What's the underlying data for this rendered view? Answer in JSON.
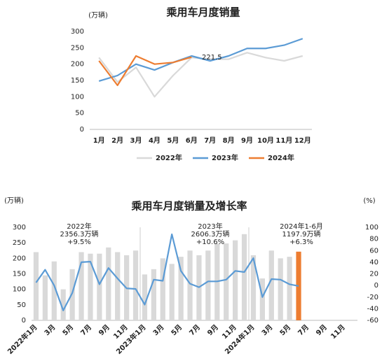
{
  "chart_data": [
    {
      "type": "line",
      "title": "乘用车月度销量",
      "y_unit_label": "(万辆)",
      "categories": [
        "1月",
        "2月",
        "3月",
        "4月",
        "5月",
        "6月",
        "7月",
        "8月",
        "9月",
        "10月",
        "11月",
        "12月"
      ],
      "series": [
        {
          "name": "2022年",
          "color": "#d9d9d9",
          "values": [
            220,
            145,
            190,
            100,
            165,
            220,
            215,
            215,
            235,
            220,
            210,
            225
          ]
        },
        {
          "name": "2023年",
          "color": "#5b9bd5",
          "values": [
            148,
            165,
            200,
            182,
            205,
            225,
            210,
            225,
            248,
            248,
            258,
            278
          ]
        },
        {
          "name": "2024年",
          "color": "#ed7d31",
          "values": [
            210,
            135,
            225,
            200,
            205,
            221.5,
            null,
            null,
            null,
            null,
            null,
            null
          ]
        }
      ],
      "annotations": [
        "221.5"
      ],
      "ylim": [
        0,
        300
      ],
      "yticks": [
        0,
        50,
        100,
        150,
        200,
        250,
        300
      ],
      "grid": false,
      "legend": "bottom"
    },
    {
      "type": "bar",
      "title": "乘用车月度销量及增长率",
      "y_unit_label": "(万辆)",
      "y2_unit_label": "(%)",
      "categories": [
        "2022年1月",
        null,
        "3月",
        null,
        "5月",
        null,
        "7月",
        null,
        "9月",
        null,
        "11月",
        null,
        "2023年1月",
        null,
        "3月",
        null,
        "5月",
        null,
        "7月",
        null,
        "9月",
        null,
        "11月",
        null,
        "2024年1月",
        null,
        "3月",
        null,
        "5月",
        null,
        "7月",
        null,
        "9月",
        null,
        "11月",
        null
      ],
      "series": [
        {
          "type": "bar",
          "color": "#d9d9d9",
          "values": [
            220,
            145,
            190,
            100,
            165,
            220,
            215,
            215,
            235,
            220,
            210,
            225,
            148,
            165,
            200,
            182,
            205,
            225,
            210,
            225,
            248,
            248,
            258,
            278,
            210,
            135,
            225,
            200,
            205,
            null,
            null,
            null,
            null,
            null,
            null,
            null
          ]
        },
        {
          "type": "bar",
          "color": "#ed7d31",
          "values": [
            null,
            null,
            null,
            null,
            null,
            null,
            null,
            null,
            null,
            null,
            null,
            null,
            null,
            null,
            null,
            null,
            null,
            null,
            null,
            null,
            null,
            null,
            null,
            null,
            null,
            null,
            null,
            null,
            null,
            221.5,
            null,
            null,
            null,
            null,
            null,
            null
          ]
        },
        {
          "type": "line",
          "axis": "y2",
          "color": "#5b9bd5",
          "values": [
            5,
            27,
            0,
            -43,
            -13,
            40,
            41,
            2,
            30,
            12,
            -5,
            -6,
            -33,
            10,
            8,
            88,
            25,
            3,
            -3,
            7,
            7,
            10,
            25,
            23,
            47,
            -20,
            11,
            10,
            2,
            -1,
            null,
            null,
            null,
            null,
            null,
            null
          ]
        }
      ],
      "annotations": [
        [
          "2022年",
          "2356.3万辆",
          "+9.5%"
        ],
        [
          "2023年",
          "2606.3万辆",
          "+10.6%"
        ],
        [
          "2024年1-6月",
          "1197.9万辆",
          "+6.3%"
        ]
      ],
      "ylim": [
        0,
        300
      ],
      "yticks": [
        0,
        50,
        100,
        150,
        200,
        250,
        300
      ],
      "y2lim": [
        -60,
        100
      ],
      "y2ticks": [
        -60,
        -40,
        -20,
        0,
        20,
        40,
        60,
        80,
        100
      ],
      "grid": false
    }
  ]
}
